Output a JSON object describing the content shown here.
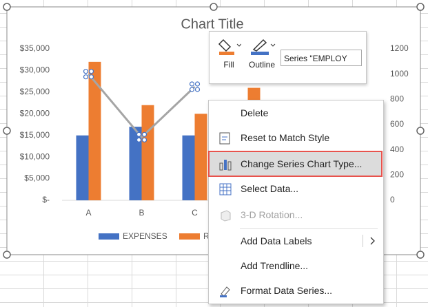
{
  "chart_data": {
    "type": "bar",
    "title": "Chart Title",
    "categories": [
      "A",
      "B",
      "C",
      null
    ],
    "series": [
      {
        "name": "EXPENSES",
        "color": "#4472c4",
        "values": [
          15000,
          17000,
          15000,
          null
        ]
      },
      {
        "name": "R",
        "color": "#ed7d31",
        "values": [
          32000,
          22000,
          20000,
          26000
        ]
      },
      {
        "type": "line",
        "axis": "y2",
        "color": "#a5a5a5",
        "values": [
          1000,
          500,
          900,
          null
        ]
      }
    ],
    "ylim": [
      0,
      35000
    ],
    "yticks": [
      {
        "value": 0,
        "label": "$-"
      },
      {
        "value": 5000,
        "label": "$5,000"
      },
      {
        "value": 10000,
        "label": "$10,000"
      },
      {
        "value": 15000,
        "label": "$15,000"
      },
      {
        "value": 20000,
        "label": "$20,000"
      },
      {
        "value": 25000,
        "label": "$25,000"
      },
      {
        "value": 30000,
        "label": "$30,000"
      },
      {
        "value": 35000,
        "label": "$35,000"
      }
    ],
    "y2lim": [
      0,
      1200
    ],
    "y2ticks": [
      0,
      200,
      400,
      600,
      800,
      1000,
      1200
    ],
    "legend": "bottom"
  },
  "toolbar": {
    "fill": "Fill",
    "outline": "Outline",
    "series_selector": "Series \"EMPLOY"
  },
  "context_menu": {
    "items": [
      "Delete",
      "Reset to Match Style",
      "Change Series Chart Type...",
      "Select Data...",
      "3-D Rotation...",
      "Add Data Labels",
      "Add Trendline...",
      "Format Data Series..."
    ]
  }
}
